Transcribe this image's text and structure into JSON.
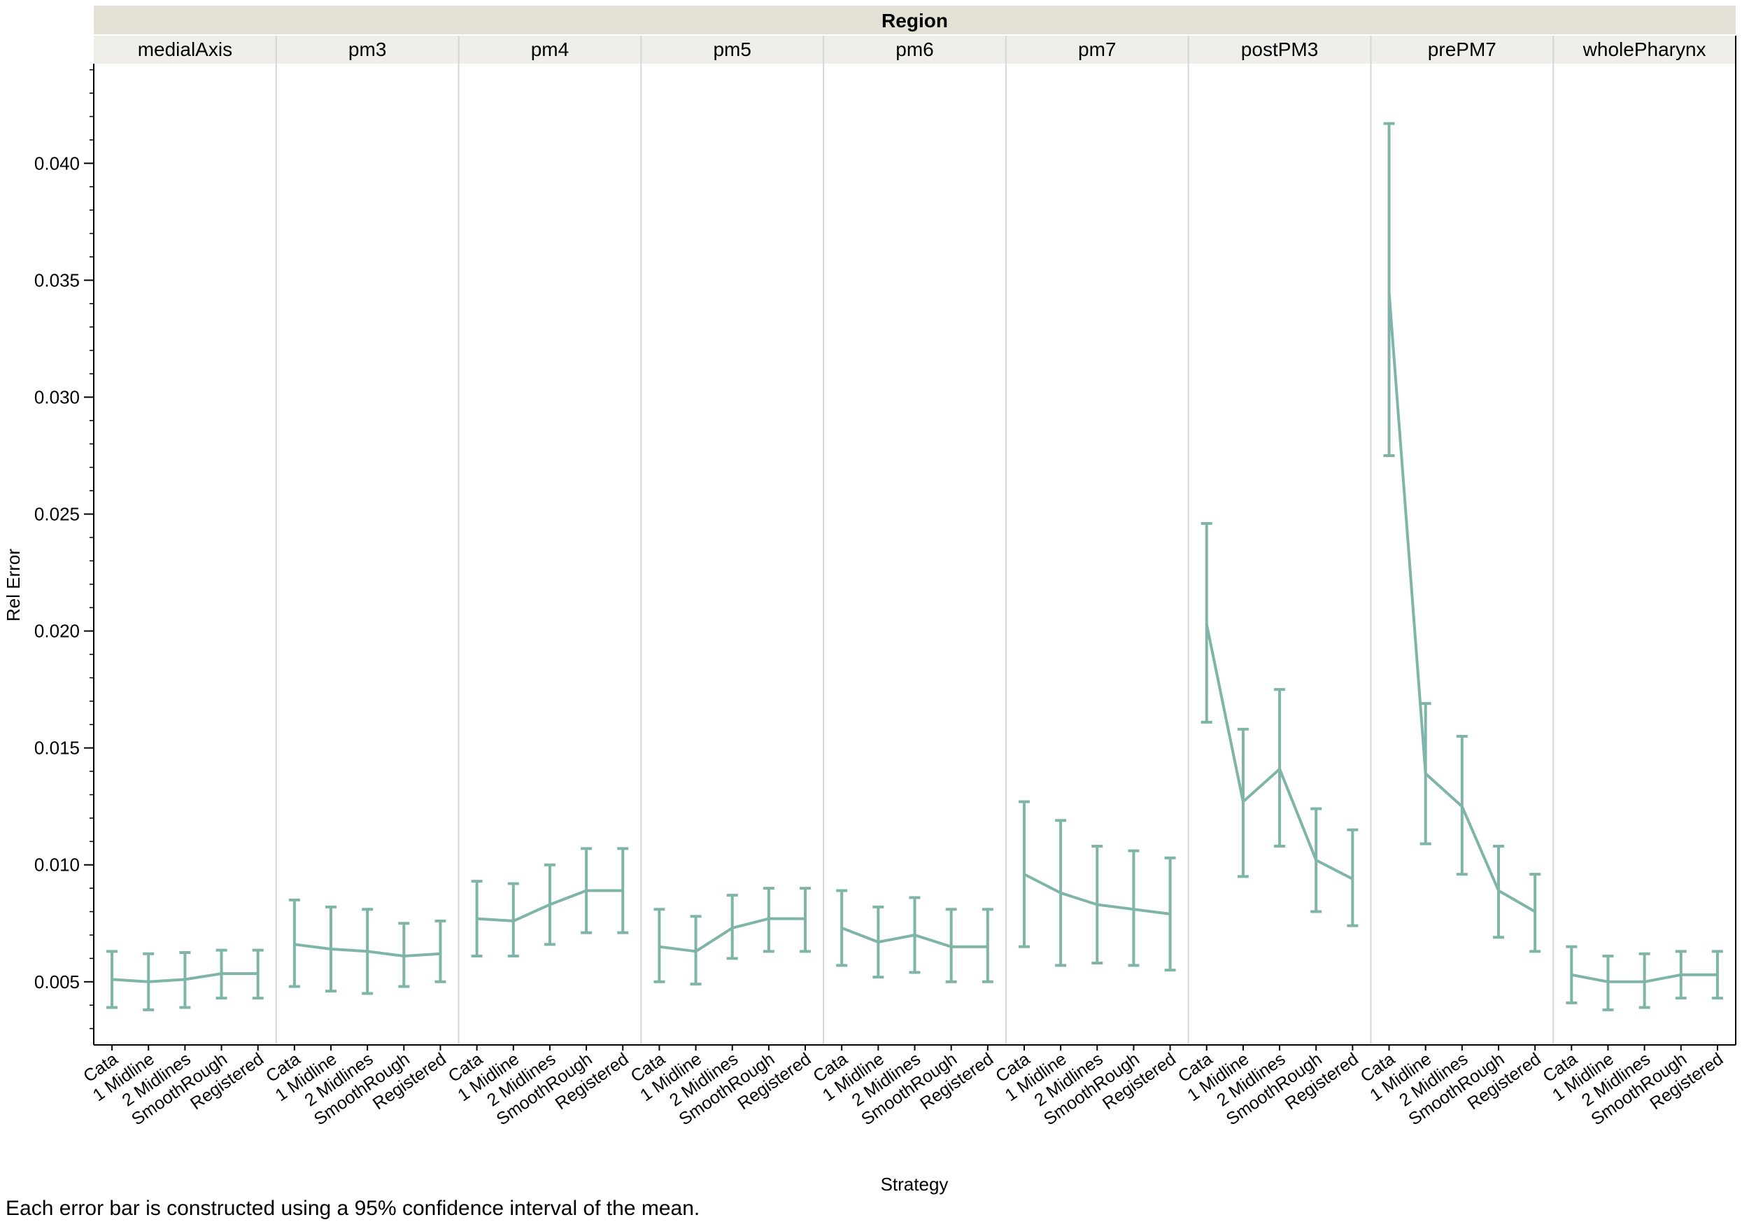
{
  "chart_data": {
    "type": "line",
    "group_header": "Region",
    "xlabel": "Strategy",
    "ylabel": "Rel Error",
    "categories": [
      "Cata",
      "1 Midline",
      "2 Midlines",
      "SmoothRough",
      "Registered"
    ],
    "ylim": [
      0.0023,
      0.0442
    ],
    "yticks": [
      0.005,
      0.01,
      0.015,
      0.02,
      0.025,
      0.03,
      0.035,
      0.04
    ],
    "ytick_labels": [
      "0.005",
      "0.010",
      "0.015",
      "0.020",
      "0.025",
      "0.030",
      "0.035",
      "0.040"
    ],
    "series_color": "#7fb5a8",
    "header_color": "#e3e1d6",
    "subheader_color": "#efeee8",
    "grid": false,
    "error_bars": "95% confidence interval of the mean",
    "panels": [
      {
        "name": "medialAxis",
        "mean": [
          0.0051,
          0.005,
          0.0051,
          0.00535,
          0.00535
        ],
        "lower": [
          0.0039,
          0.0038,
          0.0039,
          0.0043,
          0.0043
        ],
        "upper": [
          0.0063,
          0.0062,
          0.00625,
          0.00635,
          0.00635
        ]
      },
      {
        "name": "pm3",
        "mean": [
          0.0066,
          0.0064,
          0.0063,
          0.0061,
          0.0062
        ],
        "lower": [
          0.0048,
          0.0046,
          0.0045,
          0.0048,
          0.005
        ],
        "upper": [
          0.0085,
          0.0082,
          0.0081,
          0.0075,
          0.0076
        ]
      },
      {
        "name": "pm4",
        "mean": [
          0.0077,
          0.0076,
          0.0083,
          0.0089,
          0.0089
        ],
        "lower": [
          0.0061,
          0.0061,
          0.0066,
          0.0071,
          0.0071
        ],
        "upper": [
          0.0093,
          0.0092,
          0.01,
          0.0107,
          0.0107
        ]
      },
      {
        "name": "pm5",
        "mean": [
          0.0065,
          0.0063,
          0.0073,
          0.0077,
          0.0077
        ],
        "lower": [
          0.005,
          0.0049,
          0.006,
          0.0063,
          0.0063
        ],
        "upper": [
          0.0081,
          0.0078,
          0.0087,
          0.009,
          0.009
        ]
      },
      {
        "name": "pm6",
        "mean": [
          0.0073,
          0.0067,
          0.007,
          0.0065,
          0.0065
        ],
        "lower": [
          0.0057,
          0.0052,
          0.0054,
          0.005,
          0.005
        ],
        "upper": [
          0.0089,
          0.0082,
          0.0086,
          0.0081,
          0.0081
        ]
      },
      {
        "name": "pm7",
        "mean": [
          0.0096,
          0.0088,
          0.0083,
          0.0081,
          0.0079
        ],
        "lower": [
          0.0065,
          0.0057,
          0.0058,
          0.0057,
          0.0055
        ],
        "upper": [
          0.0127,
          0.0119,
          0.0108,
          0.0106,
          0.0103
        ]
      },
      {
        "name": "postPM3",
        "mean": [
          0.0203,
          0.0127,
          0.0141,
          0.0102,
          0.0094
        ],
        "lower": [
          0.0161,
          0.0095,
          0.0108,
          0.008,
          0.0074
        ],
        "upper": [
          0.0246,
          0.0158,
          0.0175,
          0.0124,
          0.0115
        ]
      },
      {
        "name": "prePM7",
        "mean": [
          0.0345,
          0.0139,
          0.0125,
          0.0089,
          0.008
        ],
        "lower": [
          0.0275,
          0.0109,
          0.0096,
          0.0069,
          0.0063
        ],
        "upper": [
          0.0417,
          0.0169,
          0.0155,
          0.0108,
          0.0096
        ]
      },
      {
        "name": "wholePharynx",
        "mean": [
          0.0053,
          0.005,
          0.005,
          0.0053,
          0.0053
        ],
        "lower": [
          0.0041,
          0.0038,
          0.0039,
          0.0043,
          0.0043
        ],
        "upper": [
          0.0065,
          0.0061,
          0.0062,
          0.0063,
          0.0063
        ]
      }
    ],
    "footnote": "Each error bar is constructed using a 95% confidence interval of the mean."
  }
}
